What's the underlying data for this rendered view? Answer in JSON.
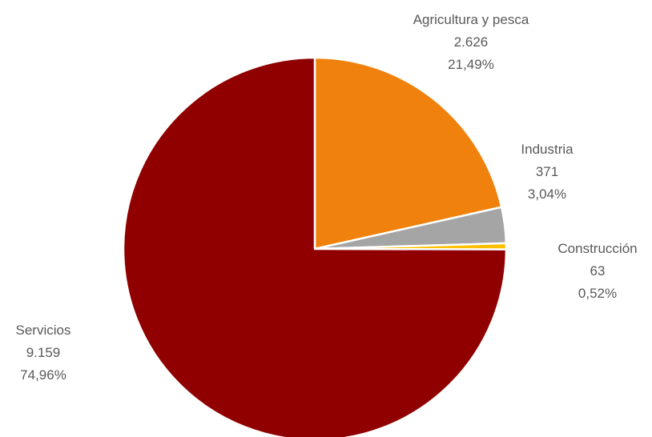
{
  "chart_data": {
    "type": "pie",
    "title": "",
    "legend": "none",
    "slices": [
      {
        "name": "Agricultura y pesca",
        "value": 2626,
        "value_label": "2.626",
        "percent": 21.49,
        "percent_label": "21,49%",
        "color": "#F0810C"
      },
      {
        "name": "Industria",
        "value": 371,
        "value_label": "371",
        "percent": 3.04,
        "percent_label": "3,04%",
        "color": "#A5A5A5"
      },
      {
        "name": "Construcción",
        "value": 63,
        "value_label": "63",
        "percent": 0.52,
        "percent_label": "0,52%",
        "color": "#FFC000"
      },
      {
        "name": "Servicios",
        "value": 9159,
        "value_label": "9.159",
        "percent": 74.96,
        "percent_label": "74,96%",
        "color": "#900000"
      }
    ]
  }
}
